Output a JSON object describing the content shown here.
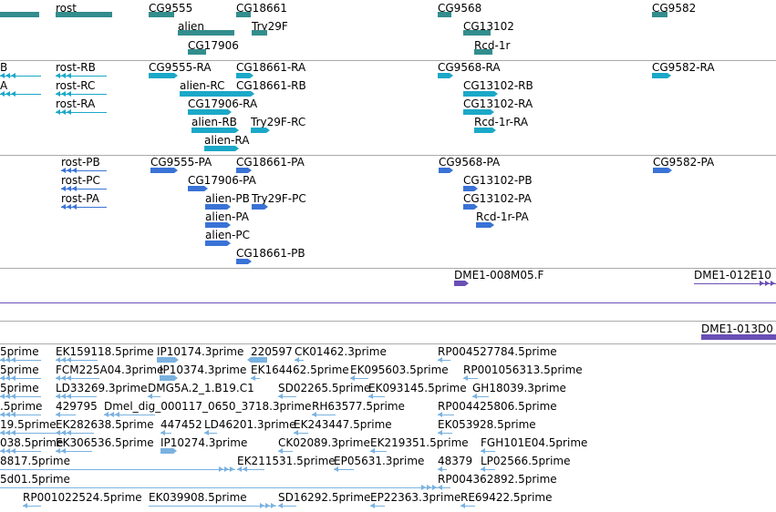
{
  "colors": {
    "gene": "#338d8d",
    "mrna": "#1ba8c8",
    "protein": "#3a73d6",
    "clone": "#6a4fb5",
    "est": "#7ab2e0",
    "separator": "#aaaaaa"
  },
  "tracks": {
    "genes": {
      "features": [
        {
          "label": "",
          "shape": "bar"
        },
        {
          "label": "rost",
          "shape": "bar"
        },
        {
          "label": "CG9555",
          "shape": "bar"
        },
        {
          "label": "CG18661",
          "shape": "bar"
        },
        {
          "label": "alien",
          "shape": "bar"
        },
        {
          "label": "Try29F",
          "shape": "bar"
        },
        {
          "label": "CG17906",
          "shape": "bar"
        },
        {
          "label": "CG9568",
          "shape": "bar"
        },
        {
          "label": "CG13102",
          "shape": "bar"
        },
        {
          "label": "Rcd-1r",
          "shape": "bar"
        },
        {
          "label": "CG9582",
          "shape": "bar"
        }
      ]
    },
    "transcripts": {
      "features": [
        {
          "label": "B",
          "shape": "line"
        },
        {
          "label": "A",
          "shape": "line"
        },
        {
          "label": "rost-RB",
          "shape": "line"
        },
        {
          "label": "rost-RC",
          "shape": "line"
        },
        {
          "label": "rost-RA",
          "shape": "line"
        },
        {
          "label": "CG9555-RA",
          "shape": "bar"
        },
        {
          "label": "alien-RC",
          "shape": "bar"
        },
        {
          "label": "CG17906-RA",
          "shape": "bar"
        },
        {
          "label": "alien-RB",
          "shape": "bar"
        },
        {
          "label": "alien-RA",
          "shape": "bar"
        },
        {
          "label": "CG18661-RA",
          "shape": "bar"
        },
        {
          "label": "CG18661-RB",
          "shape": "bar"
        },
        {
          "label": "Try29F-RC",
          "shape": "bar"
        },
        {
          "label": "CG9568-RA",
          "shape": "bar"
        },
        {
          "label": "CG13102-RB",
          "shape": "bar"
        },
        {
          "label": "CG13102-RA",
          "shape": "bar"
        },
        {
          "label": "Rcd-1r-RA",
          "shape": "bar"
        },
        {
          "label": "CG9582-RA",
          "shape": "bar"
        }
      ]
    },
    "proteins": {
      "features": [
        {
          "label": "rost-PB",
          "shape": "line"
        },
        {
          "label": "rost-PC",
          "shape": "line"
        },
        {
          "label": "rost-PA",
          "shape": "line"
        },
        {
          "label": "CG9555-PA",
          "shape": "bar"
        },
        {
          "label": "CG17906-PA",
          "shape": "bar"
        },
        {
          "label": "alien-PB",
          "shape": "bar"
        },
        {
          "label": "alien-PA",
          "shape": "bar"
        },
        {
          "label": "alien-PC",
          "shape": "bar"
        },
        {
          "label": "CG18661-PA",
          "shape": "bar"
        },
        {
          "label": "Try29F-PC",
          "shape": "bar"
        },
        {
          "label": "CG18661-PB",
          "shape": "bar"
        },
        {
          "label": "CG9568-PA",
          "shape": "bar"
        },
        {
          "label": "CG13102-PB",
          "shape": "bar"
        },
        {
          "label": "CG13102-PA",
          "shape": "bar"
        },
        {
          "label": "Rcd-1r-PA",
          "shape": "bar"
        },
        {
          "label": "CG9582-PA",
          "shape": "bar"
        }
      ]
    },
    "clones_a": {
      "features": [
        {
          "label": "DME1-008M05.F",
          "shape": "bar"
        },
        {
          "label": "DME1-012E10",
          "shape": "line"
        },
        {
          "label": "",
          "shape": "line"
        }
      ]
    },
    "clones_b": {
      "features": [
        {
          "label": "",
          "shape": "line"
        },
        {
          "label": "DME1-013D0",
          "shape": "bar"
        }
      ]
    },
    "ests": {
      "features": [
        {
          "label": "5prime",
          "shape": "line"
        },
        {
          "label": "EK159118.5prime",
          "shape": "line"
        },
        {
          "label": "IP10174.3prime",
          "shape": "bar"
        },
        {
          "label": "220597",
          "shape": "bar"
        },
        {
          "label": "CK01462.3prime",
          "shape": "line"
        },
        {
          "label": "RP004527784.5prime",
          "shape": "line"
        },
        {
          "label": "5prime",
          "shape": "line"
        },
        {
          "label": "FCM225A04.3prime",
          "shape": "line"
        },
        {
          "label": "IP10374.3prime",
          "shape": "bar"
        },
        {
          "label": "EK164462.5prime",
          "shape": "line"
        },
        {
          "label": "EK095603.5prime",
          "shape": "line"
        },
        {
          "label": "RP001056313.5prime",
          "shape": "line"
        },
        {
          "label": "5prime",
          "shape": "line"
        },
        {
          "label": "LD33269.3prime",
          "shape": "line"
        },
        {
          "label": "DMG5A.2_1.B19.C1",
          "shape": "line"
        },
        {
          "label": "SD02265.5prime",
          "shape": "line"
        },
        {
          "label": "EK093145.5prime",
          "shape": "line"
        },
        {
          "label": "GH18039.3prime",
          "shape": "line"
        },
        {
          "label": ".5prime",
          "shape": "line"
        },
        {
          "label": "429795",
          "shape": "line"
        },
        {
          "label": "Dmel_dig_000117_0650_3718.3prime",
          "shape": "line"
        },
        {
          "label": "RH63577.5prime",
          "shape": "line"
        },
        {
          "label": "RP004425806.5prime",
          "shape": "line"
        },
        {
          "label": "19.5prime",
          "shape": "line"
        },
        {
          "label": "EK282638.5prime",
          "shape": "line"
        },
        {
          "label": "447452",
          "shape": "line"
        },
        {
          "label": "LD46201.3prime",
          "shape": "line"
        },
        {
          "label": "EK243447.5prime",
          "shape": "line"
        },
        {
          "label": "EK053928.5prime",
          "shape": "line"
        },
        {
          "label": "038.5prime",
          "shape": "line"
        },
        {
          "label": "EK306536.5prime",
          "shape": "line"
        },
        {
          "label": "IP10274.3prime",
          "shape": "bar"
        },
        {
          "label": "CK02089.3prime",
          "shape": "line"
        },
        {
          "label": "EK219351.5prime",
          "shape": "line"
        },
        {
          "label": "FGH101E04.5prime",
          "shape": "line"
        },
        {
          "label": "8817.5prime",
          "shape": "line"
        },
        {
          "label": "EK211531.5prime",
          "shape": "line"
        },
        {
          "label": "EP05631.3prime",
          "shape": "line"
        },
        {
          "label": "48379",
          "shape": "line"
        },
        {
          "label": "LP02566.5prime",
          "shape": "line"
        },
        {
          "label": "5d01.5prime",
          "shape": "line"
        },
        {
          "label": "RP004362892.5prime",
          "shape": "line"
        },
        {
          "label": "RP001022524.5prime",
          "shape": "line"
        },
        {
          "label": "EK039908.5prime",
          "shape": "line"
        },
        {
          "label": "SD16292.5prime",
          "shape": "line"
        },
        {
          "label": "EP22363.3prime",
          "shape": "line"
        },
        {
          "label": "RE69422.5prime",
          "shape": "line"
        }
      ]
    }
  }
}
